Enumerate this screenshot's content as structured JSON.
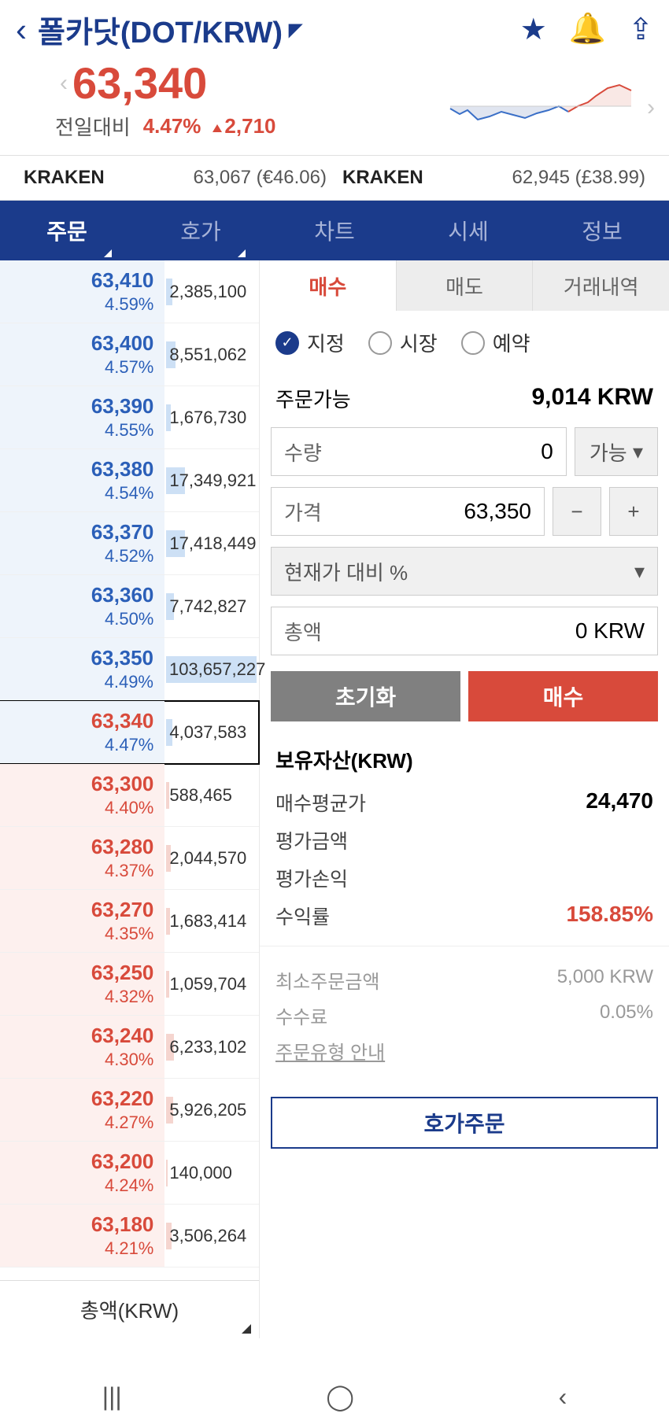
{
  "header": {
    "title": "폴카닷(DOT/KRW)",
    "price": "63,340",
    "change_label": "전일대비",
    "change_pct": "4.47%",
    "change_diff": "2,710"
  },
  "sparkline": {
    "fill_red": "#f5d8d3",
    "fill_blue": "#d6e4f5",
    "line_red": "#d84a3b",
    "line_blue": "#3a6fc7"
  },
  "exchanges": [
    {
      "name": "KRAKEN",
      "value": "63,067 (€46.06)"
    },
    {
      "name": "KRAKEN",
      "value": "62,945 (£38.99)"
    }
  ],
  "tabs": [
    "주문",
    "호가",
    "차트",
    "시세",
    "정보"
  ],
  "orderbook": {
    "asks": [
      {
        "price": "63,410",
        "pct": "4.59%",
        "vol": "2,385,100",
        "bar": 8
      },
      {
        "price": "63,400",
        "pct": "4.57%",
        "vol": "8,551,062",
        "bar": 12
      },
      {
        "price": "63,390",
        "pct": "4.55%",
        "vol": "1,676,730",
        "bar": 6
      },
      {
        "price": "63,380",
        "pct": "4.54%",
        "vol": "17,349,921",
        "bar": 24
      },
      {
        "price": "63,370",
        "pct": "4.52%",
        "vol": "17,418,449",
        "bar": 24
      },
      {
        "price": "63,360",
        "pct": "4.50%",
        "vol": "7,742,827",
        "bar": 10
      },
      {
        "price": "63,350",
        "pct": "4.49%",
        "vol": "103,657,227",
        "bar": 115
      }
    ],
    "current": {
      "price": "63,340",
      "pct": "4.47%",
      "vol": "4,037,583",
      "bar": 8
    },
    "bids": [
      {
        "price": "63,300",
        "pct": "4.40%",
        "vol": "588,465",
        "bar": 4
      },
      {
        "price": "63,280",
        "pct": "4.37%",
        "vol": "2,044,570",
        "bar": 6
      },
      {
        "price": "63,270",
        "pct": "4.35%",
        "vol": "1,683,414",
        "bar": 5
      },
      {
        "price": "63,250",
        "pct": "4.32%",
        "vol": "1,059,704",
        "bar": 4
      },
      {
        "price": "63,240",
        "pct": "4.30%",
        "vol": "6,233,102",
        "bar": 10
      },
      {
        "price": "63,220",
        "pct": "4.27%",
        "vol": "5,926,205",
        "bar": 9
      },
      {
        "price": "63,200",
        "pct": "4.24%",
        "vol": "140,000",
        "bar": 2
      },
      {
        "price": "63,180",
        "pct": "4.21%",
        "vol": "3,506,264",
        "bar": 7
      }
    ],
    "footer": "총액(KRW)"
  },
  "order": {
    "buy_tabs": [
      "매수",
      "매도",
      "거래내역"
    ],
    "types": [
      "지정",
      "시장",
      "예약"
    ],
    "available_label": "주문가능",
    "available_value": "9,014 KRW",
    "qty_label": "수량",
    "qty_value": "0",
    "qty_btn": "가능",
    "price_label": "가격",
    "price_value": "63,350",
    "percent_label": "현재가 대비 %",
    "total_label": "총액",
    "total_value": "0 KRW",
    "reset_btn": "초기화",
    "buy_btn": "매수"
  },
  "holdings": {
    "title": "보유자산(KRW)",
    "rows": [
      {
        "label": "매수평균가",
        "value": "24,470",
        "cls": ""
      },
      {
        "label": "평가금액",
        "value": "",
        "cls": ""
      },
      {
        "label": "평가손익",
        "value": "",
        "cls": ""
      },
      {
        "label": "수익률",
        "value": "158.85%",
        "cls": "red"
      }
    ]
  },
  "info": {
    "rows": [
      {
        "label": "최소주문금액",
        "value": "5,000 KRW"
      },
      {
        "label": "수수료",
        "value": "0.05%"
      }
    ],
    "link": "주문유형 안내"
  },
  "quote_btn": "호가주문"
}
